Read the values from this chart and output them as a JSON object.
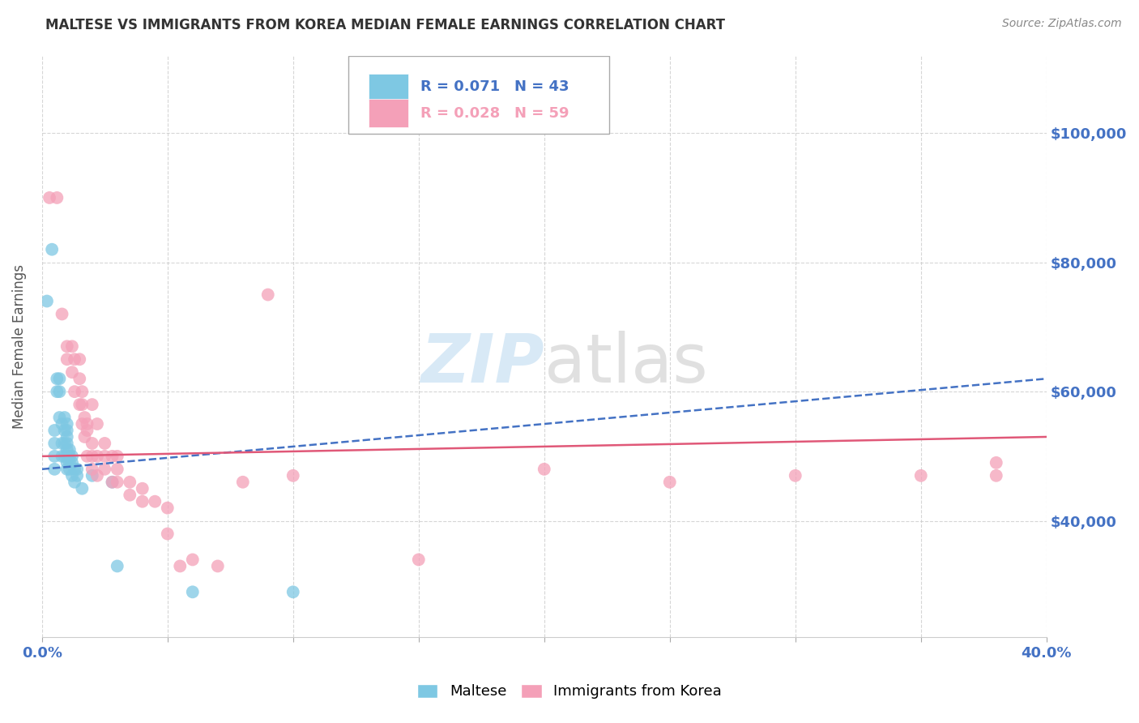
{
  "title": "MALTESE VS IMMIGRANTS FROM KOREA MEDIAN FEMALE EARNINGS CORRELATION CHART",
  "source": "Source: ZipAtlas.com",
  "ylabel": "Median Female Earnings",
  "xlim": [
    0.0,
    0.4
  ],
  "ylim": [
    22000,
    112000
  ],
  "yticks": [
    40000,
    60000,
    80000,
    100000
  ],
  "ytick_labels": [
    "$40,000",
    "$60,000",
    "$80,000",
    "$100,000"
  ],
  "xticks": [
    0.0,
    0.05,
    0.1,
    0.15,
    0.2,
    0.25,
    0.3,
    0.35,
    0.4
  ],
  "xtick_labels": [
    "0.0%",
    "",
    "",
    "",
    "",
    "",
    "",
    "",
    "40.0%"
  ],
  "maltese_color": "#7ec8e3",
  "korea_color": "#f4a0b8",
  "trend_maltese_color": "#4472c4",
  "trend_korea_color": "#e05878",
  "tick_label_color": "#4472c4",
  "watermark": "ZIPatlas",
  "background_color": "#ffffff",
  "grid_color": "#cccccc",
  "maltese_points": [
    [
      0.002,
      74000
    ],
    [
      0.004,
      82000
    ],
    [
      0.005,
      48000
    ],
    [
      0.005,
      50000
    ],
    [
      0.005,
      52000
    ],
    [
      0.005,
      54000
    ],
    [
      0.006,
      60000
    ],
    [
      0.006,
      62000
    ],
    [
      0.007,
      56000
    ],
    [
      0.007,
      60000
    ],
    [
      0.007,
      62000
    ],
    [
      0.008,
      50000
    ],
    [
      0.008,
      52000
    ],
    [
      0.008,
      55000
    ],
    [
      0.009,
      50000
    ],
    [
      0.009,
      52000
    ],
    [
      0.009,
      54000
    ],
    [
      0.009,
      56000
    ],
    [
      0.01,
      48000
    ],
    [
      0.01,
      49000
    ],
    [
      0.01,
      50000
    ],
    [
      0.01,
      51000
    ],
    [
      0.01,
      52000
    ],
    [
      0.01,
      53000
    ],
    [
      0.01,
      54000
    ],
    [
      0.01,
      55000
    ],
    [
      0.011,
      48000
    ],
    [
      0.011,
      49000
    ],
    [
      0.011,
      50000
    ],
    [
      0.011,
      51000
    ],
    [
      0.012,
      47000
    ],
    [
      0.012,
      49000
    ],
    [
      0.012,
      50000
    ],
    [
      0.013,
      46000
    ],
    [
      0.013,
      48000
    ],
    [
      0.014,
      47000
    ],
    [
      0.014,
      48000
    ],
    [
      0.016,
      45000
    ],
    [
      0.02,
      47000
    ],
    [
      0.028,
      46000
    ],
    [
      0.06,
      29000
    ],
    [
      0.1,
      29000
    ],
    [
      0.03,
      33000
    ]
  ],
  "korea_points": [
    [
      0.003,
      90000
    ],
    [
      0.006,
      90000
    ],
    [
      0.008,
      72000
    ],
    [
      0.01,
      65000
    ],
    [
      0.01,
      67000
    ],
    [
      0.012,
      63000
    ],
    [
      0.012,
      67000
    ],
    [
      0.013,
      60000
    ],
    [
      0.013,
      65000
    ],
    [
      0.015,
      58000
    ],
    [
      0.015,
      62000
    ],
    [
      0.015,
      65000
    ],
    [
      0.016,
      55000
    ],
    [
      0.016,
      58000
    ],
    [
      0.016,
      60000
    ],
    [
      0.017,
      53000
    ],
    [
      0.017,
      56000
    ],
    [
      0.018,
      50000
    ],
    [
      0.018,
      54000
    ],
    [
      0.018,
      55000
    ],
    [
      0.02,
      48000
    ],
    [
      0.02,
      50000
    ],
    [
      0.02,
      52000
    ],
    [
      0.02,
      58000
    ],
    [
      0.022,
      47000
    ],
    [
      0.022,
      50000
    ],
    [
      0.022,
      55000
    ],
    [
      0.025,
      48000
    ],
    [
      0.025,
      50000
    ],
    [
      0.025,
      52000
    ],
    [
      0.028,
      46000
    ],
    [
      0.028,
      50000
    ],
    [
      0.03,
      46000
    ],
    [
      0.03,
      48000
    ],
    [
      0.03,
      50000
    ],
    [
      0.035,
      44000
    ],
    [
      0.035,
      46000
    ],
    [
      0.04,
      43000
    ],
    [
      0.04,
      45000
    ],
    [
      0.045,
      43000
    ],
    [
      0.05,
      38000
    ],
    [
      0.05,
      42000
    ],
    [
      0.055,
      33000
    ],
    [
      0.06,
      34000
    ],
    [
      0.07,
      33000
    ],
    [
      0.08,
      46000
    ],
    [
      0.09,
      75000
    ],
    [
      0.1,
      47000
    ],
    [
      0.15,
      34000
    ],
    [
      0.2,
      48000
    ],
    [
      0.25,
      46000
    ],
    [
      0.3,
      47000
    ],
    [
      0.35,
      47000
    ],
    [
      0.38,
      47000
    ],
    [
      0.38,
      49000
    ]
  ]
}
